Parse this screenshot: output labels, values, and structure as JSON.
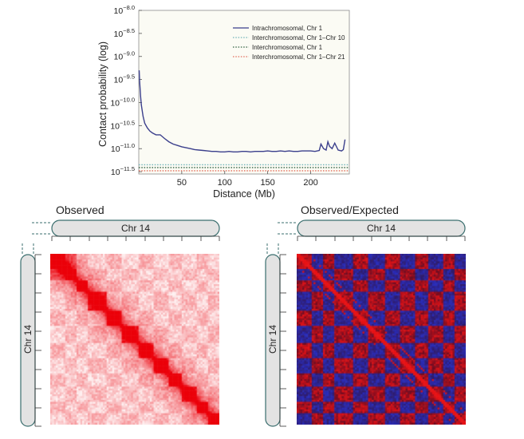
{
  "chart_data": {
    "type": "line",
    "ylabel": "Contact probability (log)",
    "xlabel": "Distance (Mb)",
    "x_ticks": [
      50,
      100,
      150,
      200
    ],
    "y_tick_labels": [
      {
        "base": "10",
        "exp": "−8.0"
      },
      {
        "base": "10",
        "exp": "−8.5"
      },
      {
        "base": "10",
        "exp": "−9.0"
      },
      {
        "base": "10",
        "exp": "−9.5"
      },
      {
        "base": "10",
        "exp": "−10.0"
      },
      {
        "base": "10",
        "exp": "−10.5"
      },
      {
        "base": "10",
        "exp": "−11.0"
      },
      {
        "base": "10",
        "exp": "−11.5"
      }
    ],
    "y_exponents": [
      -8.0,
      -8.5,
      -9.0,
      -9.5,
      -10.0,
      -10.5,
      -11.0,
      -11.5
    ],
    "xlim": [
      0,
      245
    ],
    "ylim_log10": [
      -11.55,
      -8.0
    ],
    "series": [
      {
        "name": "Intrachromosomal, Chr 1",
        "color": "#3b3f8c",
        "style": "solid",
        "x": [
          0.5,
          1,
          2,
          3,
          5,
          7,
          10,
          13,
          16,
          20,
          25,
          30,
          35,
          40,
          45,
          50,
          55,
          60,
          65,
          70,
          75,
          80,
          85,
          90,
          95,
          100,
          105,
          110,
          115,
          120,
          125,
          130,
          135,
          140,
          145,
          150,
          155,
          160,
          165,
          170,
          175,
          180,
          185,
          190,
          195,
          200,
          205,
          210,
          212,
          215,
          218,
          220,
          222,
          225,
          228,
          232,
          236,
          238,
          240
        ],
        "log10_y": [
          -9.3,
          -9.55,
          -9.85,
          -10.05,
          -10.3,
          -10.45,
          -10.55,
          -10.62,
          -10.66,
          -10.7,
          -10.7,
          -10.78,
          -10.85,
          -10.9,
          -10.93,
          -10.96,
          -10.98,
          -11.0,
          -11.02,
          -11.03,
          -11.04,
          -11.05,
          -11.06,
          -11.06,
          -11.07,
          -11.07,
          -11.06,
          -11.07,
          -11.07,
          -11.06,
          -11.06,
          -11.07,
          -11.06,
          -11.06,
          -11.06,
          -11.05,
          -11.06,
          -11.06,
          -11.05,
          -11.06,
          -11.05,
          -11.06,
          -11.06,
          -11.05,
          -11.05,
          -11.05,
          -11.06,
          -11.04,
          -10.9,
          -11.0,
          -11.03,
          -10.85,
          -10.95,
          -11.0,
          -10.88,
          -11.03,
          -11.05,
          -11.02,
          -10.8
        ]
      },
      {
        "name": "Interchromosomal, Chr 1–Chr 10",
        "color": "#6fb3b8",
        "style": "dotted",
        "log10_y_const": -11.35
      },
      {
        "name": "Interchromosomal, Chr 1",
        "color": "#2f5f3f",
        "style": "dotted",
        "log10_y_const": -11.41
      },
      {
        "name": "Interchromosomal, Chr 1–Chr 21",
        "color": "#e26b5a",
        "style": "dotted",
        "log10_y_const": -11.48
      }
    ],
    "legend_position": "top-right",
    "grid": false
  },
  "heatmaps": {
    "observed": {
      "title": "Observed",
      "chromosome_label": "Chr 14",
      "colormap": "white-red"
    },
    "observed_expected": {
      "title": "Observed/Expected",
      "chromosome_label": "Chr 14",
      "colormap": "blue-red"
    }
  }
}
